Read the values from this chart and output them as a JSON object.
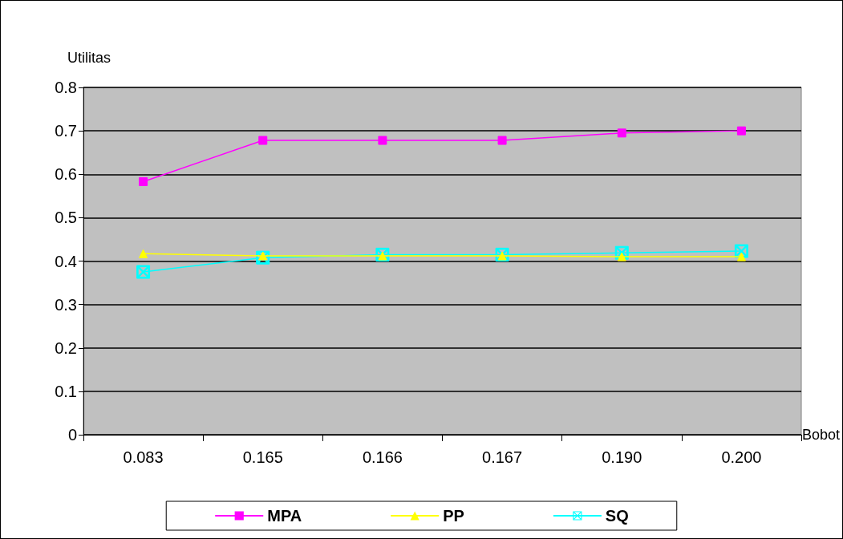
{
  "chart_data": {
    "type": "line",
    "xlabel": "Bobot",
    "ylabel": "Utilitas",
    "categories": [
      "0.083",
      "0.165",
      "0.166",
      "0.167",
      "0.190",
      "0.200"
    ],
    "series": [
      {
        "name": "MPA",
        "color": "#ff00ff",
        "marker": "square",
        "values": [
          0.583,
          0.678,
          0.678,
          0.678,
          0.695,
          0.7
        ]
      },
      {
        "name": "PP",
        "color": "#ffff00",
        "marker": "triangle",
        "values": [
          0.417,
          0.412,
          0.412,
          0.412,
          0.41,
          0.41
        ]
      },
      {
        "name": "SQ",
        "color": "#00ffff",
        "marker": "cross",
        "values": [
          0.375,
          0.408,
          0.415,
          0.415,
          0.419,
          0.423
        ]
      }
    ],
    "ylim": [
      0,
      0.8
    ],
    "yticks": [
      0,
      0.1,
      0.2,
      0.3,
      0.4,
      0.5,
      0.6,
      0.7,
      0.8
    ],
    "grid": "y",
    "legend": "bottom"
  }
}
